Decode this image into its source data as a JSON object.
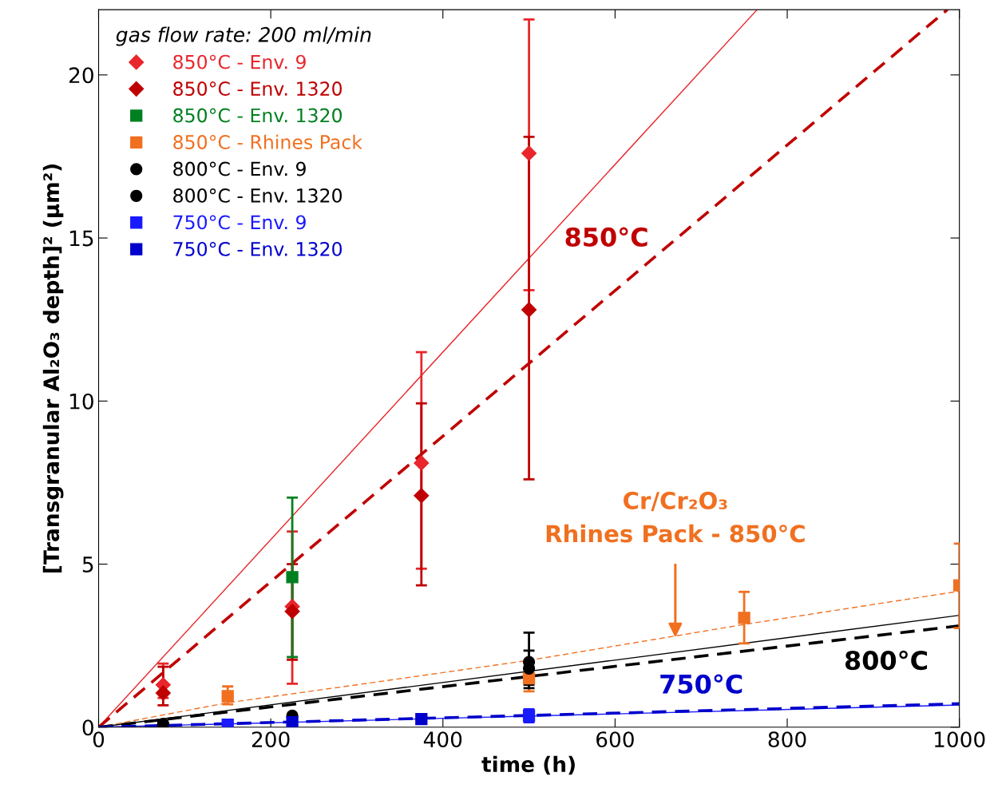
{
  "chart_data": {
    "type": "scatter",
    "xlabel": "time (h)",
    "ylabel": "[Transgranular Al₂O₃ depth]² (µm²)",
    "legend_title": "gas flow rate: 200 ml/min",
    "legend": "top left",
    "xlim": [
      0,
      1000
    ],
    "xticks": [
      0,
      200,
      400,
      600,
      800,
      1000
    ],
    "ylim": [
      0,
      22
    ],
    "yticks": [
      0,
      5,
      10,
      15,
      20
    ],
    "grid": false,
    "series": [
      {
        "name": "850°C - Env. 9",
        "color": "#e8262b",
        "marker": "diamond",
        "x": [
          75,
          225,
          375,
          500
        ],
        "values": [
          1.3,
          3.7,
          8.1,
          17.6
        ],
        "errors": [
          [
            0.9,
            1.95
          ],
          [
            1.33,
            6.0
          ],
          [
            4.86,
            11.5
          ],
          [
            13.4,
            21.7
          ]
        ]
      },
      {
        "name": "850°C - Env. 1320",
        "color": "#c00000",
        "marker": "diamond",
        "x": [
          75,
          225,
          375,
          500
        ],
        "values": [
          1.05,
          3.55,
          7.1,
          12.8
        ],
        "errors": [
          [
            0.67,
            1.85
          ],
          [
            2.07,
            5.0
          ],
          [
            4.35,
            9.93
          ],
          [
            7.6,
            18.1
          ]
        ]
      },
      {
        "name": "850°C - Env. 1320",
        "color": "#008020",
        "marker": "square",
        "x": [
          225
        ],
        "values": [
          4.6
        ],
        "errors": [
          [
            2.15,
            7.04
          ]
        ]
      },
      {
        "name": "850°C - Rhines Pack",
        "color": "#f07020",
        "marker": "square",
        "x": [
          150,
          500,
          750,
          1000
        ],
        "values": [
          0.95,
          1.5,
          3.35,
          4.35
        ],
        "errors": [
          [
            0.7,
            1.25
          ],
          [
            1.1,
            1.5
          ],
          [
            2.57,
            4.15
          ],
          [
            3.04,
            5.63
          ]
        ]
      },
      {
        "name": "800°C - Env. 9",
        "color": "#000000",
        "marker": "circle",
        "x": [
          500
        ],
        "values": [
          2.0
        ],
        "errors": [
          [
            1.3,
            2.9
          ]
        ]
      },
      {
        "name": "800°C - Env. 1320",
        "color": "#000000",
        "marker": "circle",
        "x": [
          75,
          225,
          500
        ],
        "values": [
          0.1,
          0.35,
          1.8
        ],
        "errors": [
          null,
          null,
          [
            1.2,
            2.35
          ]
        ]
      },
      {
        "name": "750°C - Env. 9",
        "color": "#1a1aff",
        "marker": "square",
        "x": [
          150,
          500
        ],
        "values": [
          0.08,
          0.35
        ],
        "errors": [
          null,
          [
            0.15,
            0.55
          ]
        ]
      },
      {
        "name": "750°C - Env. 1320",
        "color": "#0000cc",
        "marker": "square",
        "x": [
          225,
          375
        ],
        "values": [
          0.15,
          0.25
        ],
        "errors": [
          null,
          null
        ]
      },
      {
        "type": "line",
        "color": "#e8262b",
        "line_style": "solid",
        "x": [
          0,
          765
        ],
        "values": [
          0,
          22
        ]
      },
      {
        "type": "line",
        "color": "#c00000",
        "line_style": "dashed",
        "x": [
          0,
          986
        ],
        "values": [
          0,
          22
        ]
      },
      {
        "type": "line",
        "color": "#f07020",
        "line_style": "dashed",
        "x": [
          0,
          150,
          300,
          500,
          750,
          1000
        ],
        "values": [
          0,
          0.75,
          1.3,
          2.05,
          3.15,
          4.17
        ]
      },
      {
        "type": "line",
        "color": "#000000",
        "line_style": "solid",
        "x": [
          0,
          1000
        ],
        "values": [
          0,
          3.43
        ]
      },
      {
        "type": "line",
        "color": "#000000",
        "line_style": "dashed",
        "x": [
          0,
          1000
        ],
        "values": [
          0,
          3.11
        ]
      },
      {
        "type": "line",
        "color": "#1a1aff",
        "line_style": "solid",
        "x": [
          0,
          1000
        ],
        "values": [
          0,
          0.68
        ]
      },
      {
        "type": "line",
        "color": "#0000cc",
        "line_style": "dashed",
        "x": [
          0,
          1000
        ],
        "values": [
          0,
          0.72
        ]
      }
    ],
    "annotations": [
      "850°C",
      {
        "text": "Cr/Cr₂O₃\nRhines Pack - 850°C",
        "x": 670,
        "y": 2.75
      },
      "800°C",
      "750°C"
    ]
  }
}
